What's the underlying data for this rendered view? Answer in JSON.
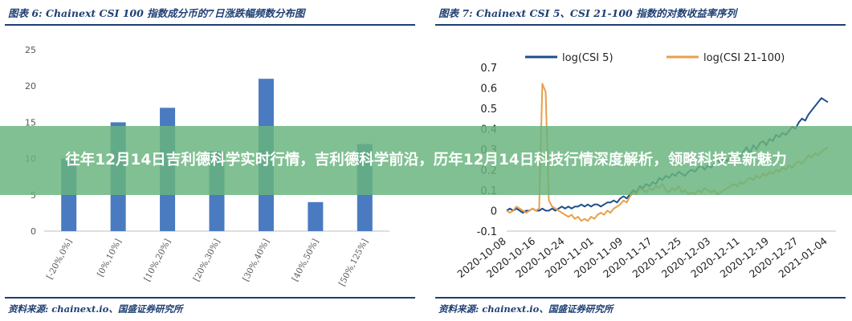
{
  "overlay": {
    "headline": "往年12月14日吉利德科学实时行情，吉利德科学前沿，历年12月14日科技行情深度解析，领略科技革新魅力"
  },
  "left": {
    "title": "图表 6: Chainext CSI 100 指数成分币的7日涨跌幅频数分布图",
    "source": "资料来源: chainext.io、国盛证券研究所"
  },
  "right": {
    "title": "图表 7: Chainext CSI 5、CSI 21-100 指数的对数收益率序列",
    "source": "资料来源: chainext.io、国盛证券研究所"
  },
  "colors": {
    "blue": "#4a7bc0",
    "navy": "#1f4e8c",
    "orange": "#e8a04a",
    "accent": "#1f3f73"
  },
  "chart_data": [
    {
      "type": "bar",
      "title": "",
      "categories": [
        "[-20%,0%]",
        "[0%,10%]",
        "[10%,20%]",
        "[20%,30%]",
        "[30%,40%]",
        "[40%,50%]",
        "[50%,125%]"
      ],
      "values": [
        10,
        15,
        17,
        11,
        21,
        4,
        12
      ],
      "ylim": [
        0,
        25
      ],
      "yticks": [
        0,
        5,
        10,
        15,
        20,
        25
      ],
      "grid": false
    },
    {
      "type": "line",
      "title": "",
      "ylim": [
        -0.1,
        0.7
      ],
      "yticks": [
        -0.1,
        0,
        0.1,
        0.2,
        0.3,
        0.4,
        0.5,
        0.6,
        0.7
      ],
      "xticks": [
        "2020-10-08",
        "2020-10-16",
        "2020-10-24",
        "2020-11-01",
        "2020-11-09",
        "2020-11-17",
        "2020-11-25",
        "2020-12-03",
        "2020-12-11",
        "2020-12-19",
        "2020-12-27",
        "2021-01-04"
      ],
      "legend_position": "top",
      "series": [
        {
          "name": "log(CSI 5)",
          "color": "#1f4e8c",
          "values": [
            0.0,
            0.01,
            0.0,
            0.01,
            0.0,
            -0.01,
            0.0,
            0.0,
            0.01,
            0.0,
            0.0,
            0.01,
            0.0,
            0.0,
            0.01,
            0.0,
            0.01,
            0.02,
            0.01,
            0.02,
            0.01,
            0.02,
            0.02,
            0.03,
            0.02,
            0.03,
            0.02,
            0.03,
            0.03,
            0.02,
            0.03,
            0.04,
            0.04,
            0.05,
            0.04,
            0.06,
            0.07,
            0.06,
            0.08,
            0.1,
            0.09,
            0.12,
            0.11,
            0.13,
            0.12,
            0.14,
            0.13,
            0.16,
            0.15,
            0.17,
            0.16,
            0.18,
            0.17,
            0.19,
            0.18,
            0.17,
            0.19,
            0.2,
            0.19,
            0.21,
            0.22,
            0.2,
            0.22,
            0.21,
            0.23,
            0.25,
            0.23,
            0.26,
            0.24,
            0.27,
            0.25,
            0.28,
            0.26,
            0.29,
            0.31,
            0.28,
            0.32,
            0.3,
            0.33,
            0.34,
            0.32,
            0.35,
            0.34,
            0.37,
            0.36,
            0.38,
            0.37,
            0.39,
            0.41,
            0.4,
            0.43,
            0.45,
            0.44,
            0.47,
            0.49,
            0.51,
            0.53,
            0.55,
            0.54,
            0.53
          ]
        },
        {
          "name": "log(CSI 21-100)",
          "color": "#e8a04a",
          "values": [
            0.0,
            -0.01,
            0.0,
            0.02,
            0.01,
            0.0,
            -0.01,
            0.0,
            0.01,
            0.0,
            0.01,
            0.62,
            0.58,
            0.05,
            0.02,
            0.01,
            0.0,
            -0.01,
            -0.02,
            -0.03,
            -0.02,
            -0.04,
            -0.03,
            -0.05,
            -0.04,
            -0.05,
            -0.03,
            -0.04,
            -0.02,
            -0.01,
            -0.02,
            0.0,
            -0.01,
            0.01,
            0.02,
            0.03,
            0.05,
            0.04,
            0.07,
            0.09,
            0.08,
            0.11,
            0.1,
            0.09,
            0.11,
            0.1,
            0.12,
            0.11,
            0.13,
            0.1,
            0.09,
            0.11,
            0.1,
            0.12,
            0.09,
            0.1,
            0.08,
            0.09,
            0.08,
            0.1,
            0.09,
            0.11,
            0.1,
            0.09,
            0.1,
            0.08,
            0.09,
            0.1,
            0.11,
            0.12,
            0.13,
            0.12,
            0.14,
            0.13,
            0.15,
            0.16,
            0.15,
            0.17,
            0.16,
            0.18,
            0.17,
            0.19,
            0.18,
            0.2,
            0.19,
            0.21,
            0.2,
            0.22,
            0.21,
            0.23,
            0.24,
            0.23,
            0.25,
            0.27,
            0.26,
            0.28,
            0.27,
            0.29,
            0.3,
            0.31
          ]
        }
      ]
    }
  ]
}
